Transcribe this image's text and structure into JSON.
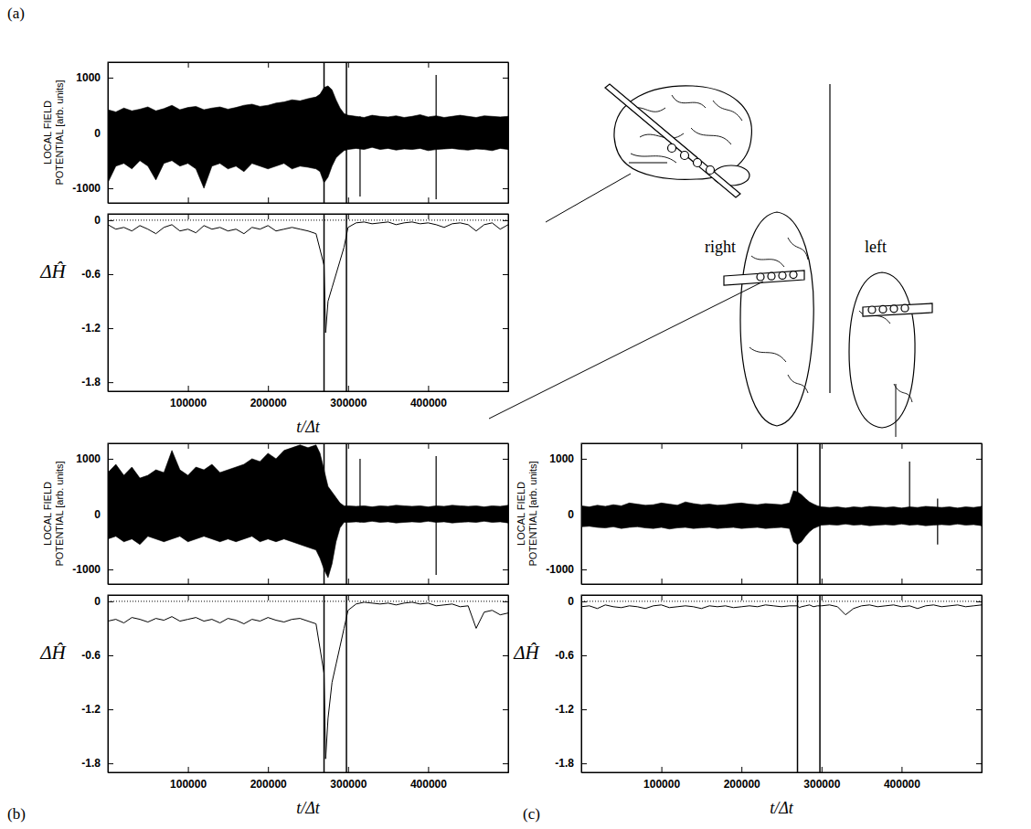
{
  "chart_data": [
    {
      "type": "band",
      "panel": "(a)",
      "ylabel": "LOCAL FIELD POTENTIAL [arb. units]",
      "x": [
        0,
        10000,
        20000,
        30000,
        40000,
        50000,
        60000,
        70000,
        80000,
        90000,
        100000,
        110000,
        120000,
        130000,
        140000,
        150000,
        160000,
        170000,
        180000,
        190000,
        200000,
        210000,
        220000,
        230000,
        240000,
        250000,
        260000,
        265000,
        270000,
        275000,
        280000,
        285000,
        290000,
        295000,
        300000,
        310000,
        320000,
        330000,
        340000,
        350000,
        360000,
        370000,
        380000,
        390000,
        400000,
        410000,
        420000,
        430000,
        440000,
        450000,
        460000,
        470000,
        480000,
        490000,
        500000
      ],
      "upper": [
        420,
        380,
        450,
        400,
        430,
        470,
        400,
        440,
        500,
        420,
        460,
        480,
        420,
        450,
        470,
        430,
        460,
        500,
        520,
        480,
        500,
        540,
        560,
        600,
        580,
        620,
        650,
        700,
        820,
        850,
        780,
        600,
        450,
        350,
        320,
        300,
        280,
        320,
        300,
        290,
        310,
        280,
        300,
        330,
        290,
        310,
        280,
        300,
        320,
        300,
        280,
        310,
        300,
        290,
        300
      ],
      "lower": [
        -900,
        -600,
        -550,
        -650,
        -500,
        -600,
        -850,
        -550,
        -500,
        -600,
        -550,
        -650,
        -1000,
        -600,
        -550,
        -650,
        -600,
        -700,
        -550,
        -600,
        -650,
        -600,
        -550,
        -650,
        -600,
        -620,
        -650,
        -700,
        -900,
        -800,
        -600,
        -450,
        -380,
        -320,
        -300,
        -280,
        -300,
        -260,
        -300,
        -280,
        -310,
        -290,
        -300,
        -280,
        -320,
        -300,
        -290,
        -280,
        -300,
        -310,
        -290,
        -300,
        -320,
        -280,
        -300
      ],
      "spikes": {
        "x": [
          315000,
          410000
        ],
        "upper": [
          300,
          1050
        ],
        "lower": [
          -1150,
          -1200
        ]
      },
      "events": [
        270000,
        298000
      ],
      "xlim": [
        0,
        500000
      ],
      "ylim": [
        -1265,
        1280
      ],
      "xticks": [
        100000,
        200000,
        300000,
        400000
      ],
      "yticks": [
        -1000,
        0,
        1000
      ],
      "tick_labels": "y"
    },
    {
      "type": "line",
      "ylabel": "ΔĤ",
      "xlabel": "t/Δt",
      "x": [
        0,
        10000,
        20000,
        30000,
        40000,
        50000,
        60000,
        70000,
        80000,
        90000,
        100000,
        110000,
        120000,
        130000,
        140000,
        150000,
        160000,
        170000,
        180000,
        190000,
        200000,
        210000,
        220000,
        230000,
        240000,
        250000,
        260000,
        270000,
        272000,
        275000,
        280000,
        285000,
        290000,
        295000,
        300000,
        310000,
        320000,
        330000,
        340000,
        350000,
        360000,
        370000,
        380000,
        390000,
        400000,
        410000,
        420000,
        430000,
        440000,
        450000,
        460000,
        470000,
        480000,
        490000,
        500000
      ],
      "values": [
        -0.05,
        -0.1,
        -0.08,
        -0.12,
        -0.06,
        -0.1,
        -0.15,
        -0.08,
        -0.05,
        -0.12,
        -0.1,
        -0.14,
        -0.06,
        -0.1,
        -0.08,
        -0.12,
        -0.1,
        -0.15,
        -0.08,
        -0.1,
        -0.06,
        -0.12,
        -0.1,
        -0.08,
        -0.1,
        -0.12,
        -0.15,
        -0.5,
        -1.25,
        -0.9,
        -0.75,
        -0.6,
        -0.45,
        -0.3,
        -0.08,
        -0.03,
        -0.02,
        -0.04,
        -0.03,
        -0.02,
        -0.05,
        -0.03,
        -0.02,
        -0.04,
        -0.03,
        -0.05,
        -0.08,
        -0.04,
        -0.03,
        -0.05,
        -0.12,
        -0.05,
        -0.03,
        -0.1,
        -0.05
      ],
      "reference_line": 0,
      "events": [
        270000,
        298000
      ],
      "xlim": [
        0,
        500000
      ],
      "ylim": [
        -1.9,
        0.07
      ],
      "xticks": [
        100000,
        200000,
        300000,
        400000
      ],
      "yticks": [
        -1.8,
        -1.2,
        -0.6,
        0
      ]
    },
    {
      "type": "band",
      "panel": "(b)",
      "ylabel": "LOCAL FIELD POTENTIAL [arb. units]",
      "x": [
        0,
        10000,
        20000,
        30000,
        40000,
        50000,
        60000,
        70000,
        80000,
        90000,
        100000,
        110000,
        120000,
        130000,
        140000,
        150000,
        160000,
        170000,
        180000,
        190000,
        200000,
        210000,
        220000,
        230000,
        240000,
        250000,
        260000,
        265000,
        270000,
        275000,
        280000,
        285000,
        290000,
        295000,
        300000,
        310000,
        320000,
        330000,
        340000,
        350000,
        360000,
        370000,
        380000,
        390000,
        400000,
        410000,
        420000,
        430000,
        440000,
        450000,
        460000,
        470000,
        480000,
        490000,
        500000
      ],
      "upper": [
        750,
        900,
        700,
        850,
        650,
        700,
        800,
        750,
        1150,
        800,
        700,
        850,
        800,
        900,
        750,
        800,
        850,
        900,
        1000,
        950,
        1100,
        1000,
        1150,
        1200,
        1250,
        1200,
        1250,
        1100,
        800,
        500,
        400,
        300,
        200,
        150,
        150,
        140,
        150,
        130,
        150,
        140,
        160,
        150,
        140,
        150,
        130,
        150,
        140,
        160,
        150,
        140,
        150,
        130,
        150,
        140,
        160
      ],
      "lower": [
        -450,
        -400,
        -500,
        -450,
        -550,
        -400,
        -450,
        -500,
        -450,
        -400,
        -500,
        -450,
        -400,
        -450,
        -500,
        -450,
        -500,
        -450,
        -400,
        -500,
        -450,
        -500,
        -450,
        -500,
        -550,
        -600,
        -650,
        -800,
        -1000,
        -1150,
        -900,
        -500,
        -250,
        -150,
        -150,
        -140,
        -150,
        -130,
        -150,
        -140,
        -160,
        -150,
        -140,
        -150,
        -130,
        -150,
        -140,
        -160,
        -150,
        -140,
        -150,
        -130,
        -150,
        -140,
        -160
      ],
      "spikes": {
        "x": [
          315000,
          410000
        ],
        "upper": [
          1000,
          1050
        ],
        "lower": [
          -150,
          -1100
        ]
      },
      "events": [
        270000,
        298000
      ],
      "xlim": [
        0,
        500000
      ],
      "ylim": [
        -1265,
        1280
      ],
      "xticks": [
        100000,
        200000,
        300000,
        400000
      ],
      "yticks": [
        -1000,
        0,
        1000
      ],
      "tick_labels": "y"
    },
    {
      "type": "line",
      "ylabel": "ΔĤ",
      "xlabel": "t/Δt",
      "x": [
        0,
        10000,
        20000,
        30000,
        40000,
        50000,
        60000,
        70000,
        80000,
        90000,
        100000,
        110000,
        120000,
        130000,
        140000,
        150000,
        160000,
        170000,
        180000,
        190000,
        200000,
        210000,
        220000,
        230000,
        240000,
        250000,
        260000,
        270000,
        272000,
        275000,
        280000,
        285000,
        290000,
        295000,
        300000,
        310000,
        320000,
        330000,
        340000,
        350000,
        360000,
        370000,
        380000,
        390000,
        400000,
        410000,
        420000,
        430000,
        440000,
        450000,
        460000,
        470000,
        480000,
        490000,
        500000
      ],
      "values": [
        -0.22,
        -0.2,
        -0.24,
        -0.18,
        -0.2,
        -0.23,
        -0.19,
        -0.21,
        -0.17,
        -0.22,
        -0.2,
        -0.18,
        -0.22,
        -0.2,
        -0.24,
        -0.19,
        -0.21,
        -0.25,
        -0.2,
        -0.22,
        -0.18,
        -0.21,
        -0.23,
        -0.2,
        -0.19,
        -0.22,
        -0.25,
        -0.8,
        -1.75,
        -1.3,
        -0.9,
        -0.7,
        -0.5,
        -0.3,
        -0.1,
        -0.03,
        -0.01,
        -0.02,
        -0.03,
        -0.02,
        -0.04,
        -0.02,
        -0.01,
        -0.03,
        -0.02,
        -0.05,
        -0.04,
        -0.03,
        -0.06,
        -0.05,
        -0.3,
        -0.12,
        -0.1,
        -0.15,
        -0.13
      ],
      "reference_line": 0,
      "events": [
        270000,
        298000
      ],
      "xlim": [
        0,
        500000
      ],
      "ylim": [
        -1.9,
        0.07
      ],
      "xticks": [
        100000,
        200000,
        300000,
        400000
      ],
      "yticks": [
        -1.8,
        -1.2,
        -0.6,
        0
      ]
    },
    {
      "type": "band",
      "panel": "(c)",
      "ylabel": "LOCAL FIELD POTENTIAL [arb. units]",
      "x": [
        0,
        10000,
        20000,
        30000,
        40000,
        50000,
        60000,
        70000,
        80000,
        90000,
        100000,
        110000,
        120000,
        130000,
        140000,
        150000,
        160000,
        170000,
        180000,
        190000,
        200000,
        210000,
        220000,
        230000,
        240000,
        250000,
        260000,
        265000,
        270000,
        275000,
        280000,
        285000,
        290000,
        295000,
        300000,
        310000,
        320000,
        330000,
        340000,
        350000,
        360000,
        370000,
        380000,
        390000,
        400000,
        410000,
        420000,
        430000,
        440000,
        450000,
        460000,
        470000,
        480000,
        490000,
        500000
      ],
      "upper": [
        150,
        130,
        160,
        140,
        170,
        150,
        200,
        180,
        160,
        170,
        200,
        180,
        160,
        220,
        190,
        170,
        180,
        160,
        170,
        190,
        200,
        180,
        170,
        190,
        180,
        170,
        200,
        420,
        400,
        350,
        280,
        220,
        180,
        150,
        130,
        120,
        130,
        110,
        130,
        120,
        140,
        130,
        120,
        130,
        110,
        130,
        120,
        140,
        130,
        120,
        130,
        110,
        130,
        120,
        140
      ],
      "lower": [
        -230,
        -220,
        -240,
        -250,
        -230,
        -260,
        -240,
        -230,
        -250,
        -260,
        -240,
        -270,
        -250,
        -240,
        -260,
        -250,
        -240,
        -260,
        -250,
        -240,
        -260,
        -250,
        -240,
        -260,
        -250,
        -240,
        -260,
        -500,
        -550,
        -500,
        -400,
        -320,
        -260,
        -230,
        -200,
        -190,
        -200,
        -180,
        -200,
        -190,
        -210,
        -200,
        -190,
        -200,
        -180,
        -200,
        -190,
        -210,
        -200,
        -190,
        -200,
        -180,
        -200,
        -190,
        -210
      ],
      "spikes": {
        "x": [
          410000,
          445000
        ],
        "upper": [
          950,
          280
        ],
        "lower": [
          -200,
          -550
        ]
      },
      "events": [
        270000,
        298000
      ],
      "xlim": [
        0,
        500000
      ],
      "ylim": [
        -1265,
        1280
      ],
      "xticks": [
        100000,
        200000,
        300000,
        400000
      ],
      "yticks": [
        -1000,
        0,
        1000
      ],
      "tick_labels": "y"
    },
    {
      "type": "line",
      "ylabel": "ΔĤ",
      "xlabel": "t/Δt",
      "x": [
        0,
        10000,
        20000,
        30000,
        40000,
        50000,
        60000,
        70000,
        80000,
        90000,
        100000,
        110000,
        120000,
        130000,
        140000,
        150000,
        160000,
        170000,
        180000,
        190000,
        200000,
        210000,
        220000,
        230000,
        240000,
        250000,
        260000,
        270000,
        272000,
        275000,
        280000,
        285000,
        290000,
        295000,
        300000,
        310000,
        320000,
        330000,
        340000,
        350000,
        360000,
        370000,
        380000,
        390000,
        400000,
        410000,
        420000,
        430000,
        440000,
        450000,
        460000,
        470000,
        480000,
        490000,
        500000
      ],
      "values": [
        -0.06,
        -0.05,
        -0.08,
        -0.04,
        -0.06,
        -0.07,
        -0.05,
        -0.06,
        -0.08,
        -0.05,
        -0.04,
        -0.07,
        -0.06,
        -0.05,
        -0.06,
        -0.08,
        -0.05,
        -0.06,
        -0.05,
        -0.07,
        -0.06,
        -0.05,
        -0.06,
        -0.04,
        -0.05,
        -0.06,
        -0.05,
        -0.05,
        -0.07,
        -0.06,
        -0.05,
        -0.04,
        -0.06,
        -0.05,
        -0.05,
        -0.04,
        -0.06,
        -0.15,
        -0.08,
        -0.05,
        -0.04,
        -0.06,
        -0.05,
        -0.04,
        -0.06,
        -0.05,
        -0.08,
        -0.05,
        -0.04,
        -0.06,
        -0.05,
        -0.04,
        -0.06,
        -0.05,
        -0.04
      ],
      "reference_line": 0,
      "events": [
        270000,
        298000
      ],
      "xlim": [
        0,
        500000
      ],
      "ylim": [
        -1.9,
        0.07
      ],
      "xticks": [
        100000,
        200000,
        300000,
        400000
      ],
      "yticks": [
        -1.8,
        -1.2,
        -0.6,
        0
      ]
    }
  ],
  "diagram": {
    "labels": [
      "right",
      "left"
    ]
  }
}
